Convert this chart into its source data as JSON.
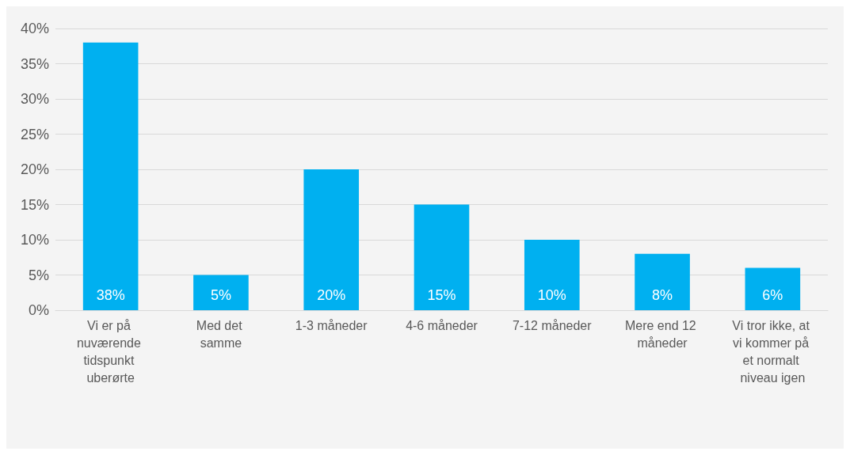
{
  "chart_data": {
    "type": "bar",
    "categories": [
      "Vi er på nuværende tidspunkt uberørte",
      "Med det samme",
      "1-3 måneder",
      "4-6 måneder",
      "7-12 måneder",
      "Mere end 12 måneder",
      "Vi tror ikke, at vi kommer på et normalt niveau igen"
    ],
    "values": [
      38,
      5,
      20,
      15,
      10,
      8,
      6
    ],
    "value_labels": [
      "38%",
      "5%",
      "20%",
      "15%",
      "10%",
      "8%",
      "6%"
    ],
    "color": "#00b0f0",
    "ylim": [
      0,
      40
    ],
    "yticks": [
      {
        "value": 0,
        "label": "0%"
      },
      {
        "value": 5,
        "label": "5%"
      },
      {
        "value": 10,
        "label": "10%"
      },
      {
        "value": 15,
        "label": "15%"
      },
      {
        "value": 20,
        "label": "20%"
      },
      {
        "value": 25,
        "label": "25%"
      },
      {
        "value": 30,
        "label": "30%"
      },
      {
        "value": 35,
        "label": "35%"
      },
      {
        "value": 40,
        "label": "40%"
      }
    ],
    "grid": "y"
  }
}
